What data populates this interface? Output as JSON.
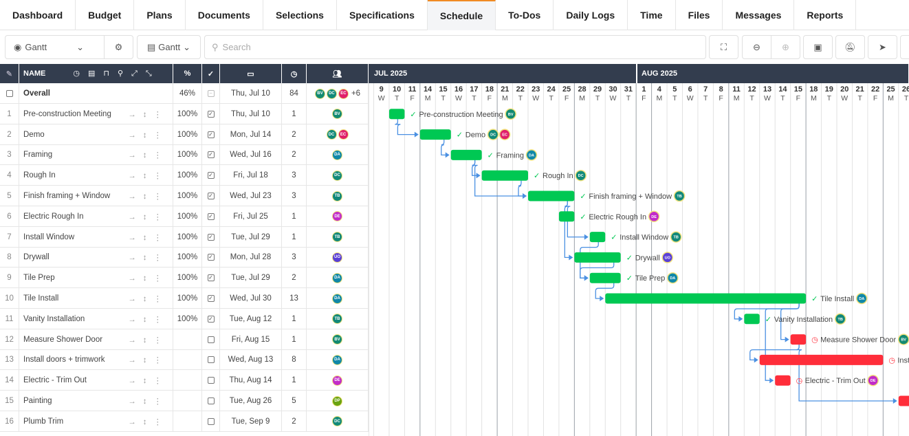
{
  "tabs": [
    "Dashboard",
    "Budget",
    "Plans",
    "Documents",
    "Selections",
    "Specifications",
    "Schedule",
    "To-Dos",
    "Daily Logs",
    "Time",
    "Files",
    "Messages",
    "Reports"
  ],
  "active_tab": "Schedule",
  "toolbar": {
    "view_select": "Gantt",
    "view_select_icon": "eye-icon",
    "settings_icon": "gear-icon",
    "layout_select": "Gantt",
    "search_placeholder": "Search"
  },
  "columns": {
    "name": "NAME",
    "percent": "%"
  },
  "months": [
    "JUL 2025",
    "AUG 2025"
  ],
  "days": [
    [
      "9",
      "W"
    ],
    [
      "10",
      "T"
    ],
    [
      "11",
      "F"
    ],
    [
      "14",
      "M"
    ],
    [
      "15",
      "T"
    ],
    [
      "16",
      "W"
    ],
    [
      "17",
      "T"
    ],
    [
      "18",
      "F"
    ],
    [
      "21",
      "M"
    ],
    [
      "22",
      "T"
    ],
    [
      "23",
      "W"
    ],
    [
      "24",
      "T"
    ],
    [
      "25",
      "F"
    ],
    [
      "28",
      "M"
    ],
    [
      "29",
      "T"
    ],
    [
      "30",
      "W"
    ],
    [
      "31",
      "T"
    ],
    [
      "1",
      "F"
    ],
    [
      "4",
      "M"
    ],
    [
      "5",
      "T"
    ],
    [
      "6",
      "W"
    ],
    [
      "7",
      "T"
    ],
    [
      "8",
      "F"
    ],
    [
      "11",
      "M"
    ],
    [
      "12",
      "T"
    ],
    [
      "13",
      "W"
    ],
    [
      "14",
      "T"
    ],
    [
      "15",
      "F"
    ],
    [
      "18",
      "M"
    ],
    [
      "19",
      "T"
    ],
    [
      "20",
      "W"
    ],
    [
      "21",
      "T"
    ],
    [
      "22",
      "F"
    ],
    [
      "25",
      "M"
    ],
    [
      "26",
      "T"
    ]
  ],
  "overall": {
    "name": "Overall",
    "percent": "46%",
    "start": "Thu, Jul 10",
    "duration": "84",
    "assignees": [
      "BV",
      "DC",
      "EC"
    ],
    "more": "+6"
  },
  "colors": {
    "BV": "#138a72",
    "DC": "#128a7a",
    "EC": "#e0206a",
    "DA": "#1088a8",
    "TB": "#12887a",
    "DE": "#c22cc9",
    "UO": "#5a3fd6",
    "DP": "#6aa311",
    "done": "#00c853",
    "late": "#ff2d3a",
    "header": "#333d4e",
    "link": "#4a90e2"
  },
  "tasks": [
    {
      "n": "1",
      "name": "Pre-construction Meeting",
      "percent": "100%",
      "done": true,
      "start": "Thu, Jul 10",
      "duration": "1",
      "a": [
        "BV"
      ],
      "col": 1,
      "len": 1
    },
    {
      "n": "2",
      "name": "Demo",
      "percent": "100%",
      "done": true,
      "start": "Mon, Jul 14",
      "duration": "2",
      "a": [
        "DC",
        "EC"
      ],
      "col": 3,
      "len": 2
    },
    {
      "n": "3",
      "name": "Framing",
      "percent": "100%",
      "done": true,
      "start": "Wed, Jul 16",
      "duration": "2",
      "a": [
        "DA"
      ],
      "col": 5,
      "len": 2
    },
    {
      "n": "4",
      "name": "Rough In",
      "percent": "100%",
      "done": true,
      "start": "Fri, Jul 18",
      "duration": "3",
      "a": [
        "DC"
      ],
      "col": 7,
      "len": 3
    },
    {
      "n": "5",
      "name": "Finish framing + Window",
      "percent": "100%",
      "done": true,
      "start": "Wed, Jul 23",
      "duration": "3",
      "a": [
        "TB"
      ],
      "col": 10,
      "len": 3
    },
    {
      "n": "6",
      "name": "Electric Rough In",
      "percent": "100%",
      "done": true,
      "start": "Fri, Jul 25",
      "duration": "1",
      "a": [
        "DE"
      ],
      "col": 12,
      "len": 1
    },
    {
      "n": "7",
      "name": "Install Window",
      "percent": "100%",
      "done": true,
      "start": "Tue, Jul 29",
      "duration": "1",
      "a": [
        "TB"
      ],
      "col": 14,
      "len": 1
    },
    {
      "n": "8",
      "name": "Drywall",
      "percent": "100%",
      "done": true,
      "start": "Mon, Jul 28",
      "duration": "3",
      "a": [
        "UO"
      ],
      "col": 13,
      "len": 3
    },
    {
      "n": "9",
      "name": "Tile Prep",
      "percent": "100%",
      "done": true,
      "start": "Tue, Jul 29",
      "duration": "2",
      "a": [
        "DA"
      ],
      "col": 14,
      "len": 2
    },
    {
      "n": "10",
      "name": "Tile Install",
      "percent": "100%",
      "done": true,
      "start": "Wed, Jul 30",
      "duration": "13",
      "a": [
        "DA"
      ],
      "col": 15,
      "len": 13
    },
    {
      "n": "11",
      "name": "Vanity Installation",
      "percent": "100%",
      "done": true,
      "start": "Tue, Aug 12",
      "duration": "1",
      "a": [
        "TB"
      ],
      "col": 24,
      "len": 1
    },
    {
      "n": "12",
      "name": "Measure Shower Door",
      "percent": "",
      "done": false,
      "start": "Fri, Aug 15",
      "duration": "1",
      "a": [
        "BV"
      ],
      "col": 27,
      "len": 1
    },
    {
      "n": "13",
      "name": "Install doors + trimwork",
      "percent": "",
      "done": false,
      "start": "Wed, Aug 13",
      "duration": "8",
      "a": [
        "DA"
      ],
      "col": 25,
      "len": 8
    },
    {
      "n": "14",
      "name": "Electric - Trim Out",
      "percent": "",
      "done": false,
      "start": "Thu, Aug 14",
      "duration": "1",
      "a": [
        "DE"
      ],
      "col": 26,
      "len": 1
    },
    {
      "n": "15",
      "name": "Painting",
      "percent": "",
      "done": false,
      "start": "Tue, Aug 26",
      "duration": "5",
      "a": [
        "DP"
      ],
      "col": 34,
      "len": 5
    },
    {
      "n": "16",
      "name": "Plumb Trim",
      "percent": "",
      "done": false,
      "start": "Tue, Sep 9",
      "duration": "2",
      "a": [
        "DC"
      ],
      "col": 44,
      "len": 2
    }
  ],
  "links": [
    [
      1,
      2
    ],
    [
      2,
      3
    ],
    [
      3,
      5
    ],
    [
      3,
      4
    ],
    [
      4,
      5
    ],
    [
      5,
      7
    ],
    [
      5,
      8
    ],
    [
      7,
      9
    ],
    [
      8,
      9
    ],
    [
      9,
      10
    ],
    [
      10,
      11
    ],
    [
      10,
      12
    ],
    [
      10,
      14
    ],
    [
      12,
      13
    ],
    [
      12,
      15
    ]
  ]
}
